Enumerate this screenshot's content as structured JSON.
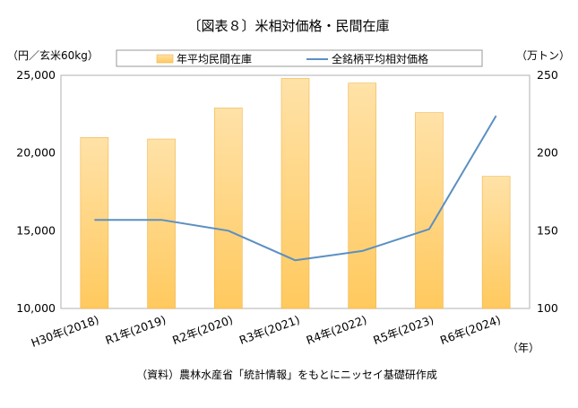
{
  "chart_data": {
    "type": "bar+line",
    "title": "〔図表８〕米相対価格・民間在庫",
    "categories": [
      "H30年(2018)",
      "R1年(2019)",
      "R2年(2020)",
      "R3年(2021)",
      "R4年(2022)",
      "R5年(2023)",
      "R6年(2024)"
    ],
    "left_axis_unit": "（円／玄米60kg）",
    "right_axis_unit": "（万トン）",
    "x_axis_unit": "（年）",
    "left_ylim": [
      10000,
      25000
    ],
    "left_ticks": [
      "10,000",
      "15,000",
      "20,000",
      "25,000"
    ],
    "right_ylim": [
      100,
      250
    ],
    "right_ticks": [
      "100",
      "150",
      "200",
      "250"
    ],
    "grid": false,
    "legend_position": "top",
    "series": [
      {
        "name": "年平均民間在庫",
        "type": "bar",
        "axis": "right",
        "color": "#ffcf73",
        "values": [
          210,
          209,
          229,
          248,
          245,
          226,
          185
        ]
      },
      {
        "name": "全銘柄平均相対価格",
        "type": "line",
        "axis": "left",
        "color": "#5b8fc2",
        "values": [
          15700,
          15700,
          15000,
          13100,
          13700,
          15100,
          22400
        ]
      }
    ],
    "source": "（資料）農林水産省「統計情報」をもとにニッセイ基礎研作成"
  }
}
